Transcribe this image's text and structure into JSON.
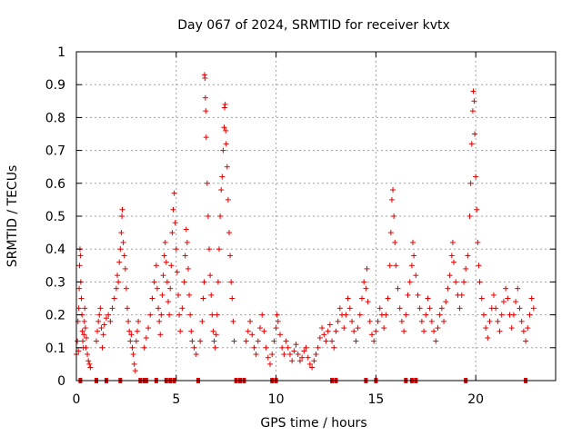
{
  "chart_data": {
    "type": "scatter",
    "title": "Day 067 of 2024, SRMTID for receiver kvtx",
    "xlabel": "GPS time / hours",
    "ylabel": "SRMTID / TECUs",
    "xlim": [
      0,
      24
    ],
    "ylim": [
      0,
      1
    ],
    "xticks": [
      0,
      5,
      10,
      15,
      20
    ],
    "yticks": [
      0,
      0.1,
      0.2,
      0.3,
      0.4,
      0.5,
      0.6,
      0.7,
      0.8,
      0.9,
      1
    ],
    "ytick_labels": [
      "0",
      "0.1",
      "0.2",
      "0.3",
      "0.4",
      "0.5",
      "0.6",
      "0.7",
      "0.8",
      "0.9",
      "1"
    ],
    "grid": true,
    "marker": "+",
    "color": "#e00000",
    "series": [
      {
        "name": "SRMTID",
        "points": [
          [
            0.0,
            0.08
          ],
          [
            0.05,
            0.12
          ],
          [
            0.08,
            0.18
          ],
          [
            0.1,
            0.09
          ],
          [
            0.12,
            0.22
          ],
          [
            0.14,
            0.28
          ],
          [
            0.16,
            0.35
          ],
          [
            0.18,
            0.4
          ],
          [
            0.2,
            0.38
          ],
          [
            0.22,
            0.3
          ],
          [
            0.25,
            0.25
          ],
          [
            0.28,
            0.2
          ],
          [
            0.3,
            0.15
          ],
          [
            0.32,
            0.12
          ],
          [
            0.35,
            0.1
          ],
          [
            0.38,
            0.14
          ],
          [
            0.4,
            0.18
          ],
          [
            0.42,
            0.22
          ],
          [
            0.45,
            0.16
          ],
          [
            0.48,
            0.1
          ],
          [
            0.5,
            0.13
          ],
          [
            0.55,
            0.08
          ],
          [
            0.6,
            0.06
          ],
          [
            0.65,
            0.05
          ],
          [
            0.7,
            0.04
          ],
          [
            1.0,
            0.12
          ],
          [
            1.05,
            0.15
          ],
          [
            1.1,
            0.18
          ],
          [
            1.15,
            0.2
          ],
          [
            1.2,
            0.22
          ],
          [
            1.25,
            0.16
          ],
          [
            1.3,
            0.1
          ],
          [
            1.35,
            0.14
          ],
          [
            1.4,
            0.17
          ],
          [
            1.5,
            0.19
          ],
          [
            1.6,
            0.2
          ],
          [
            1.7,
            0.18
          ],
          [
            1.8,
            0.22
          ],
          [
            1.9,
            0.25
          ],
          [
            2.0,
            0.28
          ],
          [
            2.05,
            0.32
          ],
          [
            2.1,
            0.3
          ],
          [
            2.15,
            0.36
          ],
          [
            2.2,
            0.4
          ],
          [
            2.25,
            0.45
          ],
          [
            2.28,
            0.5
          ],
          [
            2.3,
            0.52
          ],
          [
            2.35,
            0.42
          ],
          [
            2.4,
            0.38
          ],
          [
            2.45,
            0.34
          ],
          [
            2.5,
            0.28
          ],
          [
            2.55,
            0.22
          ],
          [
            2.6,
            0.18
          ],
          [
            2.65,
            0.15
          ],
          [
            2.7,
            0.12
          ],
          [
            2.75,
            0.14
          ],
          [
            2.8,
            0.1
          ],
          [
            2.85,
            0.08
          ],
          [
            2.9,
            0.05
          ],
          [
            2.95,
            0.03
          ],
          [
            3.0,
            0.12
          ],
          [
            3.05,
            0.15
          ],
          [
            3.1,
            0.18
          ],
          [
            3.4,
            0.1
          ],
          [
            3.5,
            0.13
          ],
          [
            3.6,
            0.16
          ],
          [
            3.7,
            0.2
          ],
          [
            3.8,
            0.25
          ],
          [
            3.9,
            0.3
          ],
          [
            4.0,
            0.35
          ],
          [
            4.05,
            0.28
          ],
          [
            4.1,
            0.22
          ],
          [
            4.15,
            0.18
          ],
          [
            4.2,
            0.14
          ],
          [
            4.25,
            0.2
          ],
          [
            4.3,
            0.26
          ],
          [
            4.35,
            0.32
          ],
          [
            4.4,
            0.38
          ],
          [
            4.45,
            0.42
          ],
          [
            4.5,
            0.36
          ],
          [
            4.55,
            0.3
          ],
          [
            4.6,
            0.24
          ],
          [
            4.65,
            0.2
          ],
          [
            4.7,
            0.28
          ],
          [
            4.75,
            0.35
          ],
          [
            4.8,
            0.45
          ],
          [
            4.85,
            0.52
          ],
          [
            4.9,
            0.57
          ],
          [
            4.95,
            0.48
          ],
          [
            5.0,
            0.4
          ],
          [
            5.05,
            0.33
          ],
          [
            5.1,
            0.26
          ],
          [
            5.15,
            0.2
          ],
          [
            5.2,
            0.15
          ],
          [
            5.3,
            0.22
          ],
          [
            5.4,
            0.3
          ],
          [
            5.45,
            0.38
          ],
          [
            5.5,
            0.46
          ],
          [
            5.55,
            0.42
          ],
          [
            5.6,
            0.34
          ],
          [
            5.65,
            0.26
          ],
          [
            5.7,
            0.2
          ],
          [
            5.75,
            0.15
          ],
          [
            5.8,
            0.12
          ],
          [
            5.9,
            0.1
          ],
          [
            6.0,
            0.08
          ],
          [
            6.2,
            0.12
          ],
          [
            6.3,
            0.18
          ],
          [
            6.35,
            0.25
          ],
          [
            6.4,
            0.3
          ],
          [
            6.42,
            0.93
          ],
          [
            6.44,
            0.92
          ],
          [
            6.46,
            0.86
          ],
          [
            6.48,
            0.82
          ],
          [
            6.5,
            0.74
          ],
          [
            6.55,
            0.6
          ],
          [
            6.6,
            0.5
          ],
          [
            6.65,
            0.4
          ],
          [
            6.7,
            0.32
          ],
          [
            6.75,
            0.26
          ],
          [
            6.8,
            0.2
          ],
          [
            6.85,
            0.15
          ],
          [
            6.9,
            0.12
          ],
          [
            6.95,
            0.1
          ],
          [
            7.0,
            0.14
          ],
          [
            7.05,
            0.2
          ],
          [
            7.1,
            0.3
          ],
          [
            7.15,
            0.4
          ],
          [
            7.2,
            0.5
          ],
          [
            7.25,
            0.58
          ],
          [
            7.3,
            0.62
          ],
          [
            7.35,
            0.7
          ],
          [
            7.4,
            0.77
          ],
          [
            7.42,
            0.83
          ],
          [
            7.45,
            0.84
          ],
          [
            7.48,
            0.76
          ],
          [
            7.5,
            0.72
          ],
          [
            7.55,
            0.65
          ],
          [
            7.6,
            0.55
          ],
          [
            7.65,
            0.45
          ],
          [
            7.7,
            0.38
          ],
          [
            7.75,
            0.3
          ],
          [
            7.8,
            0.25
          ],
          [
            7.85,
            0.18
          ],
          [
            7.9,
            0.12
          ],
          [
            8.5,
            0.12
          ],
          [
            8.6,
            0.15
          ],
          [
            8.7,
            0.18
          ],
          [
            8.8,
            0.14
          ],
          [
            8.9,
            0.1
          ],
          [
            9.0,
            0.08
          ],
          [
            9.1,
            0.12
          ],
          [
            9.2,
            0.16
          ],
          [
            9.3,
            0.2
          ],
          [
            9.4,
            0.15
          ],
          [
            9.5,
            0.1
          ],
          [
            9.6,
            0.07
          ],
          [
            9.7,
            0.05
          ],
          [
            9.8,
            0.08
          ],
          [
            9.9,
            0.12
          ],
          [
            10.0,
            0.16
          ],
          [
            10.05,
            0.2
          ],
          [
            10.1,
            0.18
          ],
          [
            10.2,
            0.14
          ],
          [
            10.3,
            0.1
          ],
          [
            10.4,
            0.08
          ],
          [
            10.5,
            0.12
          ],
          [
            10.6,
            0.1
          ],
          [
            10.7,
            0.08
          ],
          [
            10.8,
            0.06
          ],
          [
            10.9,
            0.09
          ],
          [
            11.0,
            0.11
          ],
          [
            11.1,
            0.08
          ],
          [
            11.2,
            0.06
          ],
          [
            11.3,
            0.07
          ],
          [
            11.4,
            0.09
          ],
          [
            11.5,
            0.1
          ],
          [
            11.6,
            0.07
          ],
          [
            11.7,
            0.05
          ],
          [
            11.8,
            0.04
          ],
          [
            11.9,
            0.06
          ],
          [
            12.0,
            0.08
          ],
          [
            12.1,
            0.1
          ],
          [
            12.2,
            0.13
          ],
          [
            12.3,
            0.16
          ],
          [
            12.4,
            0.14
          ],
          [
            12.5,
            0.12
          ],
          [
            12.6,
            0.15
          ],
          [
            12.7,
            0.17
          ],
          [
            12.8,
            0.12
          ],
          [
            12.9,
            0.1
          ],
          [
            13.0,
            0.15
          ],
          [
            13.1,
            0.18
          ],
          [
            13.2,
            0.22
          ],
          [
            13.3,
            0.2
          ],
          [
            13.4,
            0.16
          ],
          [
            13.5,
            0.2
          ],
          [
            13.6,
            0.25
          ],
          [
            13.7,
            0.22
          ],
          [
            13.8,
            0.18
          ],
          [
            13.9,
            0.15
          ],
          [
            14.0,
            0.12
          ],
          [
            14.1,
            0.16
          ],
          [
            14.2,
            0.2
          ],
          [
            14.3,
            0.25
          ],
          [
            14.4,
            0.3
          ],
          [
            14.5,
            0.28
          ],
          [
            14.55,
            0.34
          ],
          [
            14.6,
            0.24
          ],
          [
            14.7,
            0.18
          ],
          [
            14.8,
            0.14
          ],
          [
            14.9,
            0.12
          ],
          [
            15.0,
            0.15
          ],
          [
            15.1,
            0.18
          ],
          [
            15.2,
            0.22
          ],
          [
            15.3,
            0.2
          ],
          [
            15.4,
            0.16
          ],
          [
            15.5,
            0.2
          ],
          [
            15.6,
            0.25
          ],
          [
            15.7,
            0.35
          ],
          [
            15.75,
            0.45
          ],
          [
            15.8,
            0.55
          ],
          [
            15.85,
            0.58
          ],
          [
            15.9,
            0.5
          ],
          [
            15.95,
            0.42
          ],
          [
            16.0,
            0.35
          ],
          [
            16.1,
            0.28
          ],
          [
            16.2,
            0.22
          ],
          [
            16.3,
            0.18
          ],
          [
            16.4,
            0.15
          ],
          [
            16.5,
            0.2
          ],
          [
            16.6,
            0.26
          ],
          [
            16.7,
            0.3
          ],
          [
            16.8,
            0.35
          ],
          [
            16.85,
            0.42
          ],
          [
            16.9,
            0.38
          ],
          [
            17.0,
            0.32
          ],
          [
            17.1,
            0.26
          ],
          [
            17.2,
            0.22
          ],
          [
            17.3,
            0.18
          ],
          [
            17.4,
            0.15
          ],
          [
            17.5,
            0.2
          ],
          [
            17.6,
            0.25
          ],
          [
            17.7,
            0.22
          ],
          [
            17.8,
            0.18
          ],
          [
            17.9,
            0.15
          ],
          [
            18.0,
            0.12
          ],
          [
            18.1,
            0.16
          ],
          [
            18.2,
            0.2
          ],
          [
            18.3,
            0.22
          ],
          [
            18.4,
            0.18
          ],
          [
            18.5,
            0.24
          ],
          [
            18.6,
            0.28
          ],
          [
            18.7,
            0.32
          ],
          [
            18.8,
            0.38
          ],
          [
            18.85,
            0.42
          ],
          [
            18.9,
            0.36
          ],
          [
            19.0,
            0.3
          ],
          [
            19.1,
            0.26
          ],
          [
            19.2,
            0.22
          ],
          [
            19.3,
            0.26
          ],
          [
            19.4,
            0.3
          ],
          [
            19.5,
            0.34
          ],
          [
            19.6,
            0.38
          ],
          [
            19.7,
            0.5
          ],
          [
            19.75,
            0.6
          ],
          [
            19.8,
            0.72
          ],
          [
            19.85,
            0.82
          ],
          [
            19.88,
            0.88
          ],
          [
            19.92,
            0.85
          ],
          [
            19.95,
            0.75
          ],
          [
            20.0,
            0.62
          ],
          [
            20.05,
            0.52
          ],
          [
            20.1,
            0.42
          ],
          [
            20.15,
            0.35
          ],
          [
            20.2,
            0.3
          ],
          [
            20.3,
            0.25
          ],
          [
            20.4,
            0.2
          ],
          [
            20.5,
            0.16
          ],
          [
            20.6,
            0.13
          ],
          [
            20.7,
            0.18
          ],
          [
            20.8,
            0.22
          ],
          [
            20.9,
            0.26
          ],
          [
            21.0,
            0.22
          ],
          [
            21.1,
            0.18
          ],
          [
            21.2,
            0.15
          ],
          [
            21.3,
            0.2
          ],
          [
            21.4,
            0.24
          ],
          [
            21.5,
            0.28
          ],
          [
            21.6,
            0.25
          ],
          [
            21.7,
            0.2
          ],
          [
            21.8,
            0.16
          ],
          [
            21.9,
            0.2
          ],
          [
            22.0,
            0.24
          ],
          [
            22.1,
            0.28
          ],
          [
            22.2,
            0.22
          ],
          [
            22.3,
            0.18
          ],
          [
            22.4,
            0.15
          ],
          [
            22.5,
            0.12
          ],
          [
            22.6,
            0.16
          ],
          [
            22.7,
            0.2
          ],
          [
            22.8,
            0.25
          ],
          [
            22.9,
            0.22
          ]
        ]
      }
    ],
    "zero_line_markers_x": [
      0.2,
      1.0,
      1.5,
      2.2,
      3.2,
      3.4,
      3.5,
      4.0,
      4.5,
      4.7,
      4.9,
      6.1,
      8.0,
      8.2,
      8.4,
      9.8,
      10.0,
      12.8,
      13.0,
      14.5,
      15.0,
      16.5,
      16.8,
      17.0,
      19.5,
      22.5
    ]
  }
}
